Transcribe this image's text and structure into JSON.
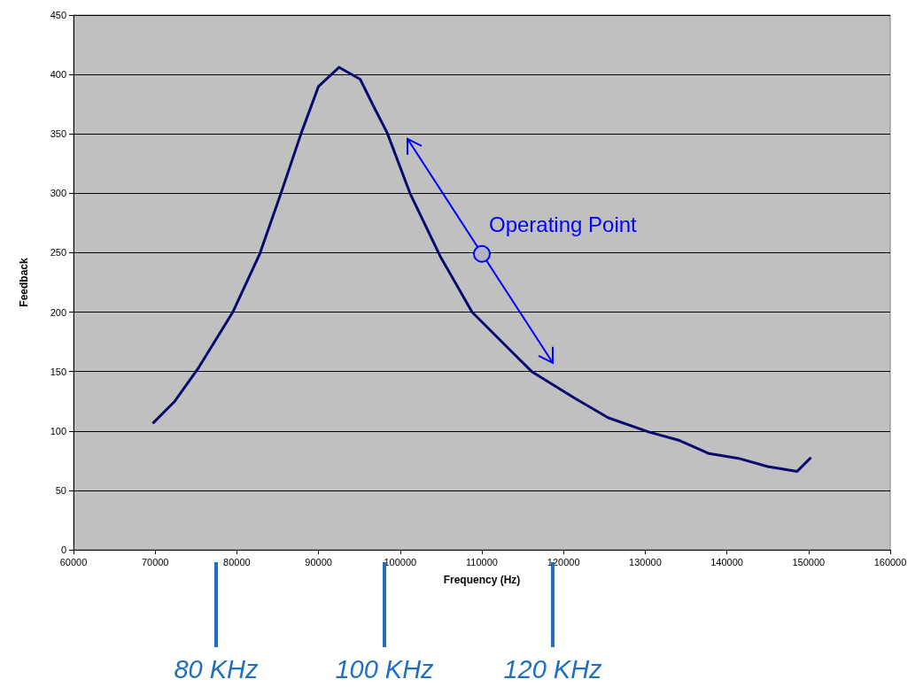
{
  "chart_data": {
    "type": "line",
    "xlabel": "Frequency (Hz)",
    "ylabel": "Feedback",
    "xlim": [
      60000,
      160000
    ],
    "xticks": [
      60000,
      70000,
      80000,
      90000,
      100000,
      110000,
      120000,
      130000,
      140000,
      150000,
      160000
    ],
    "ylim": [
      0,
      450
    ],
    "yticks": [
      0,
      50,
      100,
      150,
      200,
      250,
      300,
      350,
      400,
      450
    ],
    "grid": "y",
    "marker": "none",
    "line_style": "solid",
    "series": [
      {
        "color": "#0a0a6e",
        "x": [
          69800,
          72400,
          75200,
          79500,
          82800,
          85400,
          87900,
          90000,
          92500,
          95100,
          96900,
          98400,
          101200,
          104900,
          108800,
          113900,
          116100,
          121500,
          125500,
          130500,
          134200,
          137800,
          141400,
          145000,
          148600,
          150200
        ],
        "values": [
          107,
          125,
          152,
          200,
          249,
          300,
          351,
          390,
          406,
          396,
          371,
          351,
          300,
          247,
          200,
          165,
          150,
          127,
          111,
          99,
          92,
          81,
          77,
          70,
          66,
          77
        ]
      }
    ],
    "annotations": [
      {
        "text": "Operating Point",
        "x": 110000,
        "y": 249
      },
      "80 KHz",
      "100 KHz",
      "120 KHz"
    ]
  }
}
